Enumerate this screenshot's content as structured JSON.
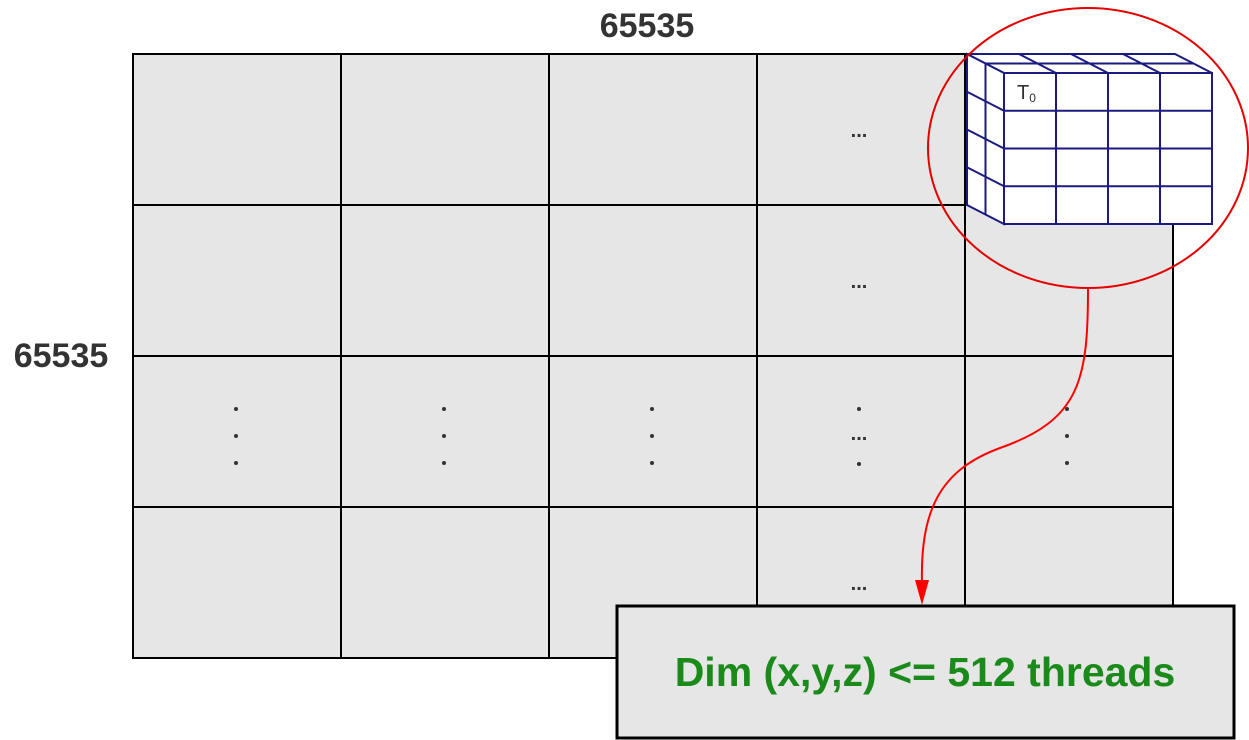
{
  "grid": {
    "width_label": "65535",
    "height_label": "65535",
    "rows": 4,
    "cols": 5,
    "cell_color": "#e6e6e6",
    "line_color": "#000000",
    "row_ellipsis": "...",
    "column_ellipsis": "...",
    "center_ellipsis": "..."
  },
  "block": {
    "thread_label": "T",
    "thread_subscript": "0",
    "rows": 4,
    "cols": 4,
    "line_color": "#1a1a80",
    "face_color": "#ffffff"
  },
  "callout": {
    "circle_color": "#e60000",
    "arrow_color": "#ff0000",
    "text": "Dim (x,y,z) <= 512 threads",
    "text_color": "#1a8a1a",
    "box_color": "#e6e6e6"
  }
}
